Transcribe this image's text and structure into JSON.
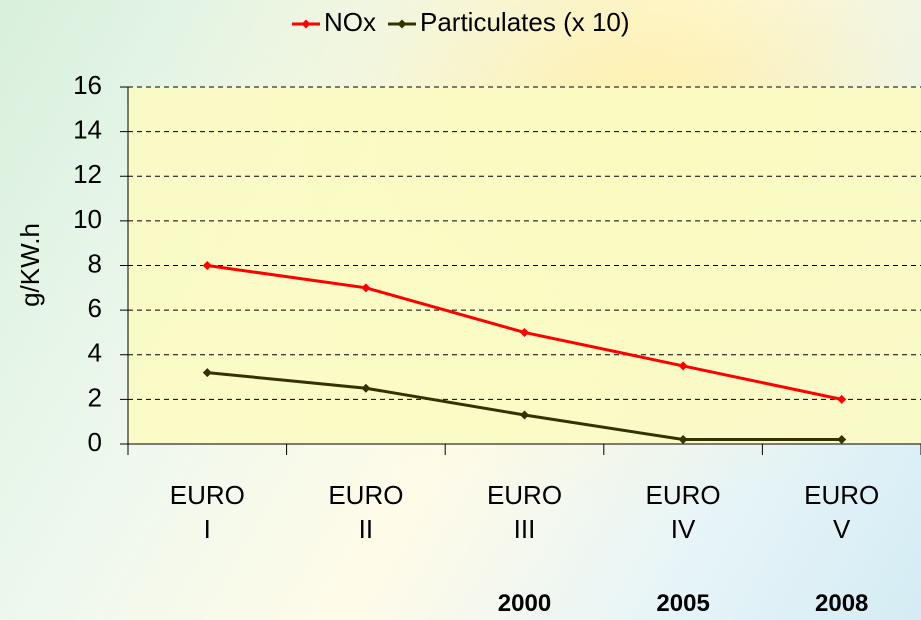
{
  "chart_data": {
    "type": "line",
    "y_label": "g/KW.h",
    "categories": [
      "EURO I",
      "EURO II",
      "EURO III",
      "EURO IV",
      "EURO V"
    ],
    "year_labels": [
      null,
      null,
      "2000",
      "2005",
      "2008"
    ],
    "series": [
      {
        "name": "NOx",
        "color": "#ff0000",
        "values": [
          8,
          7,
          5,
          3.5,
          2
        ]
      },
      {
        "name": "Particulates (x 10)",
        "color": "#333300",
        "values": [
          3.2,
          2.5,
          1.3,
          0.2,
          0.2
        ]
      }
    ],
    "ylim": [
      0,
      16
    ],
    "yticks": [
      0,
      2,
      4,
      6,
      8,
      10,
      12,
      14,
      16
    ],
    "grid": true,
    "legend": "top"
  }
}
